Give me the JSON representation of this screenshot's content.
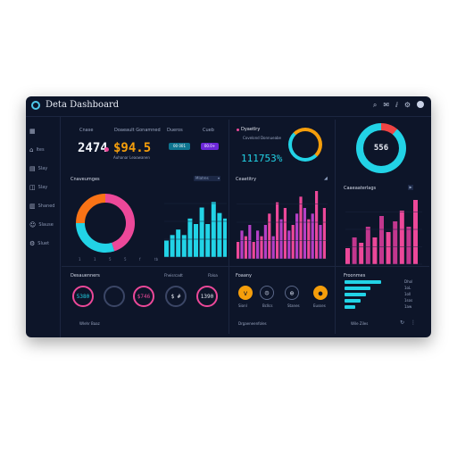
{
  "app": {
    "title": "Deta Dashboard"
  },
  "toolbar": {
    "icons": [
      "search-icon",
      "mail-icon",
      "info-icon",
      "settings-icon",
      "avatar"
    ]
  },
  "sidebar": {
    "items": [
      {
        "icon": "grid-icon",
        "label": ""
      },
      {
        "icon": "home-icon",
        "label": "Ites"
      },
      {
        "icon": "chart-icon",
        "label": "Slay"
      },
      {
        "icon": "layers-icon",
        "label": "Slay"
      },
      {
        "icon": "table-icon",
        "label": "Shaned"
      },
      {
        "icon": "users-icon",
        "label": "Slause"
      },
      {
        "icon": "settings-icon",
        "label": "Sluet"
      }
    ]
  },
  "kpi": {
    "label1": "Cnase",
    "label2": "Doaeault Gonamned",
    "label3": "Dueros",
    "label4": "Cueb",
    "value1": "2474",
    "value2": "$94.5",
    "sub2": "Auhanar Leaowanen",
    "chip1": "00 001",
    "chip2": "00.0+"
  },
  "gauge1": {
    "label": "Dyaetlry",
    "sub": "Covelond Donnueabe",
    "value": "111753%"
  },
  "gauge2": {
    "value": "556"
  },
  "donut_panel": {
    "title": "Cnaveumges",
    "select": "Mlatres",
    "axis": [
      "1",
      "1",
      "5",
      "5",
      "f",
      "tb"
    ]
  },
  "center_panel": {
    "title": "Ceaetitry"
  },
  "right_panel": {
    "title": "Caaeaaterlags"
  },
  "bottom1": {
    "title": "Desauenners",
    "tab1": "Fheisrcadt",
    "tab2": "Fbloa",
    "footer": "Wlehr Baaz",
    "circles": [
      "5380",
      "",
      "$746",
      "$ #",
      "1390"
    ]
  },
  "bottom2": {
    "title": "Foaany",
    "labels": [
      "Sionl",
      "Bcllcs",
      "Stanes",
      "Eusses"
    ],
    "footer": "Drgaeneenfoles",
    "icons": [
      "v-icon",
      "emoji-icon",
      "globe-icon",
      "coin-icon"
    ]
  },
  "bottom3": {
    "title": "Froonmes",
    "footer": "Wile Ziles",
    "bars": [
      {
        "label": "Dhol",
        "value": 0.85
      },
      {
        "label": "1oL",
        "value": 0.6
      },
      {
        "label": "1oll",
        "value": 0.5
      },
      {
        "label": "1sos",
        "value": 0.38
      },
      {
        "label": "1aw",
        "value": 0.25
      }
    ]
  },
  "chart_data": [
    {
      "type": "pie",
      "values": [
        45,
        30,
        25
      ],
      "colors": [
        "#ec4899",
        "#22d3e6",
        "#f97316"
      ]
    },
    {
      "type": "bar",
      "values": [
        3,
        4,
        5,
        4,
        7,
        6,
        9,
        6,
        10,
        8,
        7,
        11,
        9,
        12
      ],
      "color": "#22d3e6"
    },
    {
      "type": "bar",
      "values": [
        3,
        5,
        4,
        6,
        3,
        5,
        4,
        6,
        8,
        4,
        10,
        7,
        9,
        5,
        6,
        8,
        11,
        9,
        7,
        8,
        12,
        6,
        9
      ],
      "colors": [
        "#ec4899",
        "#b43fc6"
      ]
    },
    {
      "type": "bar",
      "values": [
        3,
        5,
        4,
        7,
        5,
        9,
        6,
        8,
        10,
        7,
        12
      ],
      "colors": [
        "#ec4899",
        "#c2378e"
      ]
    }
  ]
}
